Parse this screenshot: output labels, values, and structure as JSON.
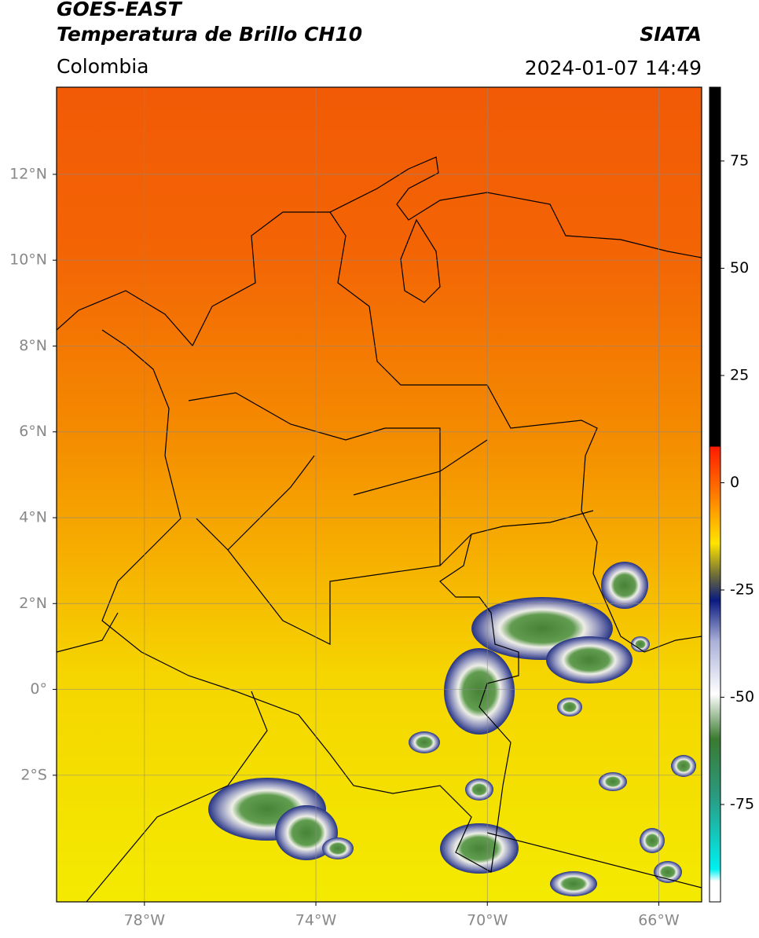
{
  "map": {
    "title": "GOES-EAST",
    "subtitle": "Temperatura de Brillo CH10",
    "source": "SIATA",
    "region": "Colombia",
    "datetime": "2024-01-07 14:49",
    "xlim": [
      -80.05,
      -65
    ],
    "ylim": [
      -4.95,
      14.03
    ],
    "xticks": [
      {
        "value": -78,
        "label": "78°W"
      },
      {
        "value": -74,
        "label": "74°W"
      },
      {
        "value": -70,
        "label": "70°W"
      },
      {
        "value": -66,
        "label": "66°W"
      }
    ],
    "yticks": [
      {
        "value": -2,
        "label": "2°S"
      },
      {
        "value": 0,
        "label": "0°"
      },
      {
        "value": 2,
        "label": "2°N"
      },
      {
        "value": 4,
        "label": "4°N"
      },
      {
        "value": 6,
        "label": "6°N"
      },
      {
        "value": 8,
        "label": "8°N"
      },
      {
        "value": 10,
        "label": "10°N"
      },
      {
        "value": 12,
        "label": "12°N"
      }
    ],
    "colorbar": {
      "clim": [
        -97.7,
        92.2
      ],
      "ticks": [
        -75,
        -50,
        -25,
        0,
        25,
        50,
        75
      ]
    },
    "grid": true
  }
}
